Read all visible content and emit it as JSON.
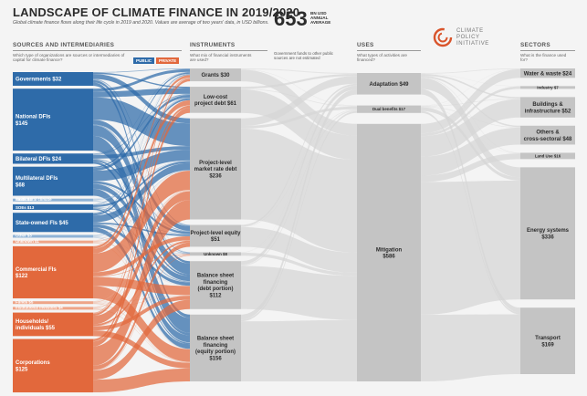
{
  "header": {
    "title": "LANDSCAPE OF CLIMATE FINANCE IN 2019/2020",
    "subtitle": "Global climate finance flows along their life cycle in 2019 and 2020. Values are average of two years' data, in USD billions.",
    "total_value": "653",
    "total_unit": "BN USD ANNUAL AVERAGE",
    "total_note": "Government funds to other public sources are not estimated"
  },
  "logo": {
    "line1": "CLIMATE",
    "line2": "POLICY",
    "line3": "INITIATIVE"
  },
  "columns": {
    "sources": {
      "title": "SOURCES AND INTERMEDIARIES",
      "question": "Which type of organizations are sources or intermediaries of capital for climate finance?"
    },
    "instruments": {
      "title": "INSTRUMENTS",
      "question": "What mix of financial instruments are used?"
    },
    "uses": {
      "title": "USES",
      "question": "What types of activities are financed?"
    },
    "sectors": {
      "title": "SECTORS",
      "question": "What is the finance used for?"
    }
  },
  "legend": {
    "public": "PUBLIC",
    "private": "PRIVATE"
  },
  "colors": {
    "public": "#2e6ba9",
    "public_light": "#8fb3d6",
    "private": "#e2683c",
    "private_light": "#eea588",
    "neutral_node": "#c4c4c4",
    "flow": "#d6d6d6"
  },
  "sources": [
    {
      "id": "governments",
      "line1": "Governments $32",
      "line2": "",
      "value": 32,
      "type": "public"
    },
    {
      "id": "national_dfis",
      "line1": "National DFIs",
      "line2": "$145",
      "value": 145,
      "type": "public"
    },
    {
      "id": "bilateral_dfis",
      "line1": "Bilateral DFIs $24",
      "line2": "",
      "value": 24,
      "type": "public"
    },
    {
      "id": "multilateral_dfis",
      "line1": "Multilateral DFIs",
      "line2": "$68",
      "value": 68,
      "type": "public"
    },
    {
      "id": "multilateral_climate_funds",
      "line1": "Multilateral climate",
      "line2": "funds $4",
      "value": 4,
      "type": "public_light"
    },
    {
      "id": "soes",
      "line1": "SOEs $13",
      "line2": "",
      "value": 13,
      "type": "public"
    },
    {
      "id": "state_owned_fis",
      "line1": "State-owned FIs $45",
      "line2": "",
      "value": 45,
      "type": "public"
    },
    {
      "id": "other",
      "line1": "Other $3",
      "line2": "",
      "value": 3,
      "type": "public_light"
    },
    {
      "id": "unknown_src",
      "line1": "Unknown $1",
      "line2": "",
      "value": 1,
      "type": "private_light"
    },
    {
      "id": "commercial_fis",
      "line1": "Commercial FIs",
      "line2": "$122",
      "value": 122,
      "type": "private"
    },
    {
      "id": "funds",
      "line1": "Funds $5",
      "line2": "",
      "value": 5,
      "type": "private_light"
    },
    {
      "id": "institutional_investors",
      "line1": "Institutional investors $4",
      "line2": "",
      "value": 4,
      "type": "private_light"
    },
    {
      "id": "households",
      "line1": "Households/",
      "line2": "individuals $55",
      "value": 55,
      "type": "private"
    },
    {
      "id": "corporations",
      "line1": "Corporations",
      "line2": "$125",
      "value": 125,
      "type": "private"
    }
  ],
  "instruments": [
    {
      "id": "grants",
      "line1": "Grants $30",
      "line2": "",
      "line3": "",
      "value": 30
    },
    {
      "id": "lowcost_debt",
      "line1": "Low-cost",
      "line2": "project debt $61",
      "line3": "",
      "value": 61
    },
    {
      "id": "market_debt",
      "line1": "Project-level",
      "line2": "market rate debt",
      "line3": "$236",
      "value": 236
    },
    {
      "id": "project_equity",
      "line1": "Project-level equity",
      "line2": "$51",
      "line3": "",
      "value": 51
    },
    {
      "id": "unknown_instr",
      "line1": "Unknown $8",
      "line2": "",
      "line3": "",
      "value": 8
    },
    {
      "id": "bs_debt",
      "line1": "Balance sheet",
      "line2": "financing",
      "line3": "(debt portion)",
      "line4": "$112",
      "value": 112
    },
    {
      "id": "bs_equity",
      "line1": "Balance sheet",
      "line2": "financing",
      "line3": "(equity portion)",
      "line4": "$156",
      "value": 156
    }
  ],
  "uses": [
    {
      "id": "adaptation",
      "line1": "Adaptation $49",
      "line2": "",
      "value": 49
    },
    {
      "id": "dual",
      "line1": "Dual benefits $17",
      "line2": "",
      "value": 17
    },
    {
      "id": "mitigation",
      "line1": "Mitigation",
      "line2": "$586",
      "value": 586
    }
  ],
  "sectors": [
    {
      "id": "water",
      "line1": "Water & waste $24",
      "line2": "",
      "value": 24
    },
    {
      "id": "industry",
      "line1": "Industry $7",
      "line2": "",
      "value": 7
    },
    {
      "id": "buildings",
      "line1": "Buildings &",
      "line2": "infrastructure $52",
      "value": 52
    },
    {
      "id": "others_cross",
      "line1": "Others &",
      "line2": "cross-sectoral $48",
      "value": 48
    },
    {
      "id": "land_use",
      "line1": "Land Use $16",
      "line2": "",
      "value": 16
    },
    {
      "id": "energy",
      "line1": "Energy systems",
      "line2": "$336",
      "value": 336
    },
    {
      "id": "transport",
      "line1": "Transport",
      "line2": "$169",
      "value": 169
    }
  ]
}
